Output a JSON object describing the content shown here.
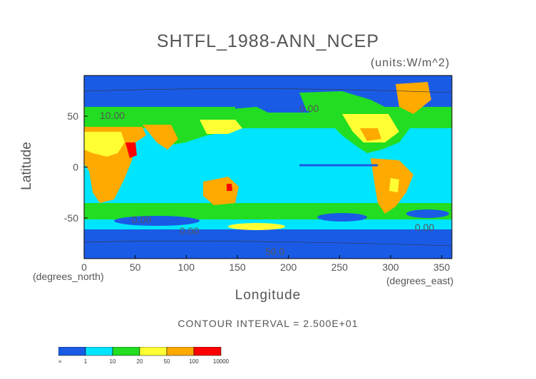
{
  "chart_data": {
    "type": "heatmap",
    "title": "SHTFL_1988-ANN_NCEP",
    "units": "(units:W/m^2)",
    "xlabel": "Longitude",
    "ylabel": "Latitude",
    "x_units_left": "(degrees_north)",
    "x_units_right": "(degrees_east)",
    "xlim": [
      0,
      360
    ],
    "ylim": [
      -90,
      90
    ],
    "x_ticks": [
      0,
      50,
      100,
      150,
      200,
      250,
      300,
      350
    ],
    "y_ticks": [
      50,
      0,
      -50
    ],
    "contour_interval": "CONTOUR INTERVAL = 2.500E+01",
    "contour_labels": [
      "10.00",
      "0.00",
      "0.00",
      "0.00",
      "0.00",
      "50.0"
    ],
    "colorbar": {
      "labels": [
        "-∞",
        "1",
        "10",
        "20",
        "50",
        "100",
        "10000"
      ],
      "colors": [
        "#1a5be6",
        "#00e5ff",
        "#22dd22",
        "#ffff33",
        "#ffaa00",
        "#ff0000"
      ]
    }
  }
}
